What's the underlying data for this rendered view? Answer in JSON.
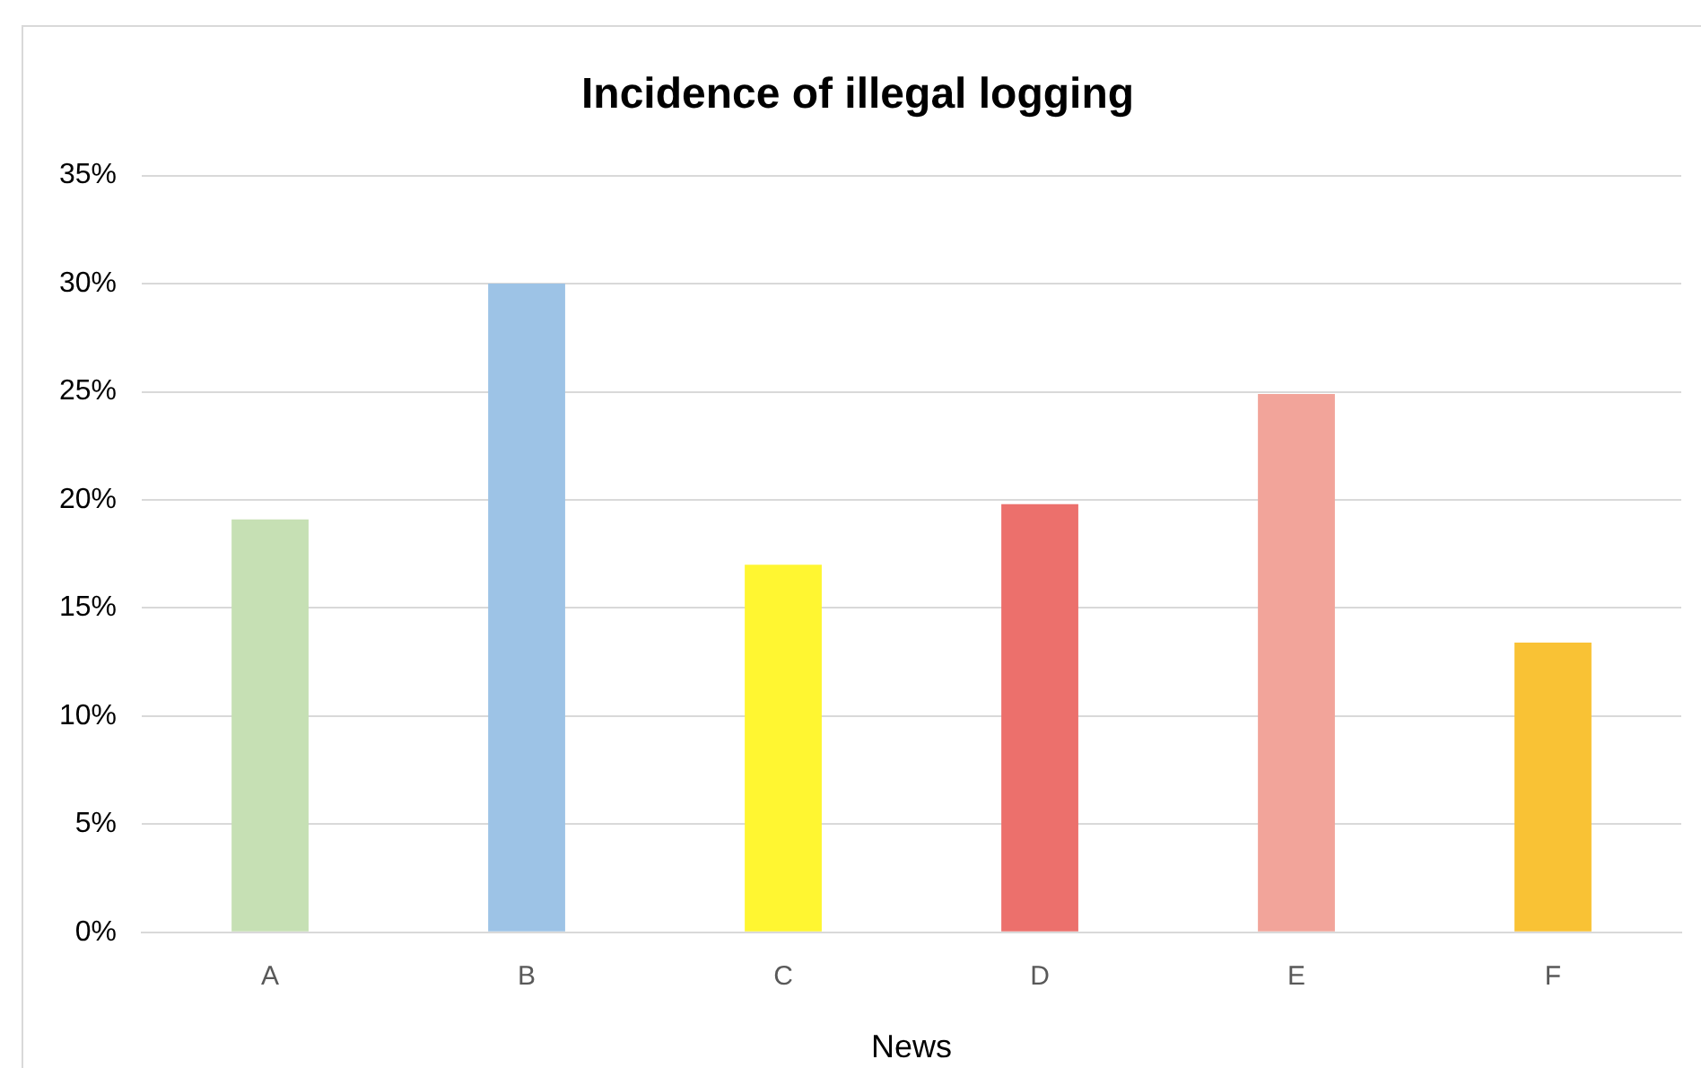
{
  "chart_data": {
    "type": "bar",
    "title": "Incidence of illegal logging",
    "xlabel": "News",
    "categories": [
      "A",
      "B",
      "C",
      "D",
      "E",
      "F"
    ],
    "values": [
      19.1,
      30.0,
      17.0,
      19.8,
      24.9,
      13.4
    ],
    "colors": [
      "#c6e0b4",
      "#9dc3e6",
      "#fff631",
      "#ec706c",
      "#f2a49a",
      "#f9c235"
    ],
    "ylim": [
      0,
      35
    ],
    "yticks": [
      {
        "value": 0,
        "label": "0%"
      },
      {
        "value": 5,
        "label": "5%"
      },
      {
        "value": 10,
        "label": "10%"
      },
      {
        "value": 15,
        "label": "15%"
      },
      {
        "value": 20,
        "label": "20%"
      },
      {
        "value": 25,
        "label": "25%"
      },
      {
        "value": 30,
        "label": "30%"
      },
      {
        "value": 35,
        "label": "35%"
      }
    ],
    "grid": "y"
  }
}
